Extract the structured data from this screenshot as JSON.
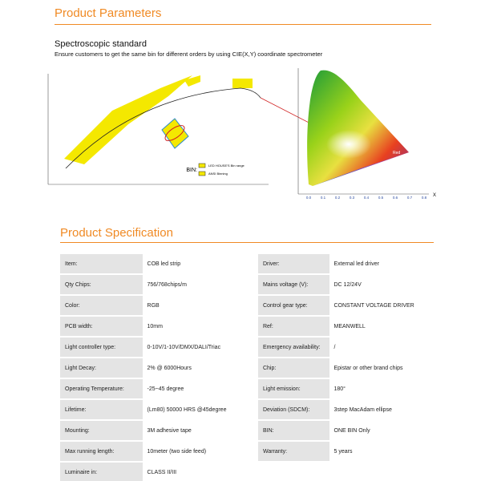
{
  "parameters": {
    "title": "Product Parameters",
    "subtitle": "Spectroscopic standard",
    "description": "Ensure customers to get the same bin for different orders by using CIE(X,Y) coordinate spectrometer"
  },
  "bin_diagram": {
    "bin_label": "BIN:",
    "legend": [
      "LED HOUSE'S Bin range",
      "ANSI Binning"
    ]
  },
  "cie_diagram": {
    "region": "Red",
    "x_label": "X",
    "x_ticks": [
      "0.0",
      "0.1",
      "0.2",
      "0.3",
      "0.4",
      "0.5",
      "0.6",
      "0.7",
      "0.8"
    ]
  },
  "specification": {
    "title": "Product Specification",
    "rows": [
      [
        "Item:",
        "COB led strip",
        "Driver:",
        "External  led driver"
      ],
      [
        "Qty Chips:",
        "756/768chips/m",
        "Mains voltage (V):",
        "DC 12/24V"
      ],
      [
        "Color:",
        "RGB",
        "Control gear type:",
        "CONSTANT VOLTAGE DRIVER"
      ],
      [
        "PCB width:",
        "10mm",
        "Ref:",
        "MEANWELL"
      ],
      [
        "Light controller type:",
        "0-10V/1-10V/DMX/DALI/Triac",
        "Emergency availability:",
        "/"
      ],
      [
        "Light Decay:",
        "2% @ 6000Hours",
        "Chip:",
        "Epistar or other brand chips"
      ],
      [
        "Operating Temperature:",
        "-25~45 degree",
        "Light emission:",
        "180°"
      ],
      [
        "Lifetime:",
        "(Lm80) 50000 HRS @45degree",
        "Deviation (SDCM):",
        "3step MacAdam ellipse"
      ],
      [
        "Mounting:",
        "3M adhesive tape",
        "BIN:",
        "ONE BIN Only"
      ],
      [
        "Max running length:",
        "10meter (two side feed)",
        "Warranty:",
        "5 years"
      ],
      [
        "Luminaire in:",
        "CLASS II/III"
      ]
    ]
  }
}
